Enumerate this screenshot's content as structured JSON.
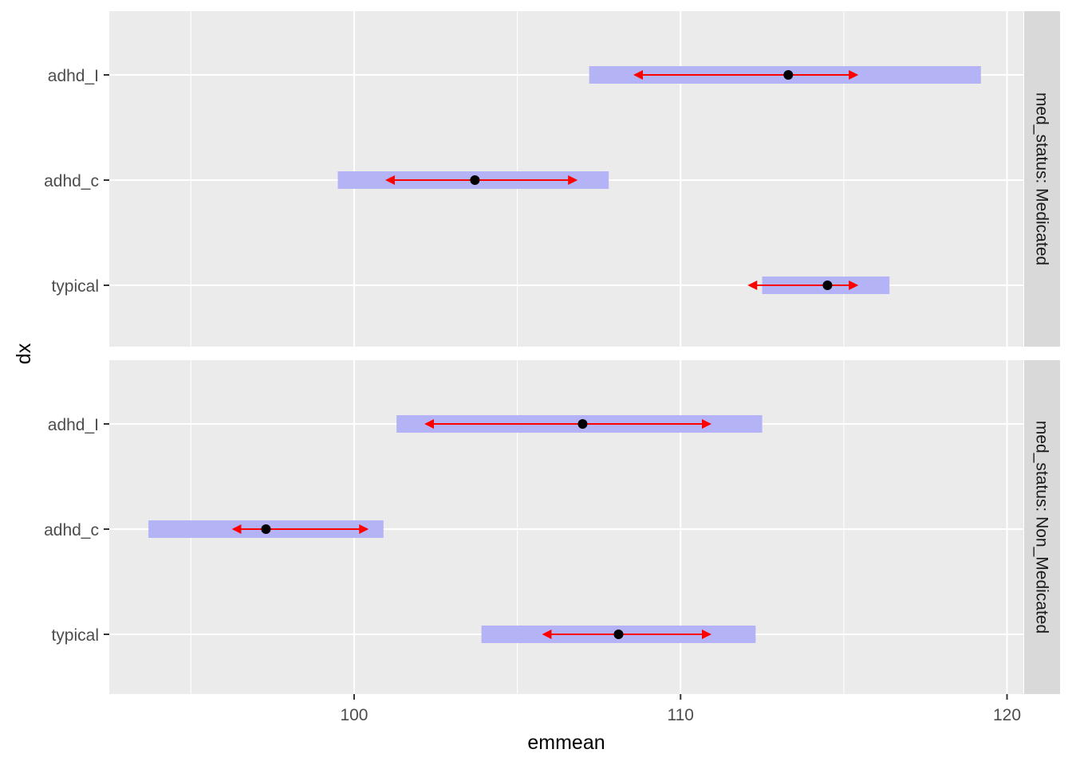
{
  "chart_data": {
    "type": "interval",
    "xlabel": "emmean",
    "ylabel": "dx",
    "xlim": [
      92.5,
      120.5
    ],
    "x_ticks": [
      100,
      110,
      120
    ],
    "categories": [
      "adhd_I",
      "adhd_c",
      "typical"
    ],
    "facet_label": "med_status",
    "facets": [
      {
        "strip": "med_status: Medicated",
        "rows": [
          {
            "dx": "adhd_I",
            "emmean": 113.3,
            "ci_low": 107.2,
            "ci_high": 119.2,
            "comp_low": 108.7,
            "comp_high": 115.3
          },
          {
            "dx": "adhd_c",
            "emmean": 103.7,
            "ci_low": 99.5,
            "ci_high": 107.8,
            "comp_low": 101.1,
            "comp_high": 106.7
          },
          {
            "dx": "typical",
            "emmean": 114.5,
            "ci_low": 112.5,
            "ci_high": 116.4,
            "comp_low": 112.2,
            "comp_high": 115.3
          }
        ]
      },
      {
        "strip": "med_status: Non_Medicated",
        "rows": [
          {
            "dx": "adhd_I",
            "emmean": 107.0,
            "ci_low": 101.3,
            "ci_high": 112.5,
            "comp_low": 102.3,
            "comp_high": 110.8
          },
          {
            "dx": "adhd_c",
            "emmean": 97.3,
            "ci_low": 93.7,
            "ci_high": 100.9,
            "comp_low": 96.4,
            "comp_high": 100.3
          },
          {
            "dx": "typical",
            "emmean": 108.1,
            "ci_low": 103.9,
            "ci_high": 112.3,
            "comp_low": 105.9,
            "comp_high": 110.8
          }
        ]
      }
    ],
    "colors": {
      "panel_bg": "#ebebeb",
      "grid": "#ffffff",
      "strip_bg": "#d9d9d9",
      "ci_bar": "#b3b3f5",
      "comparison_arrow": "#ff0000",
      "point": "#000000"
    }
  }
}
